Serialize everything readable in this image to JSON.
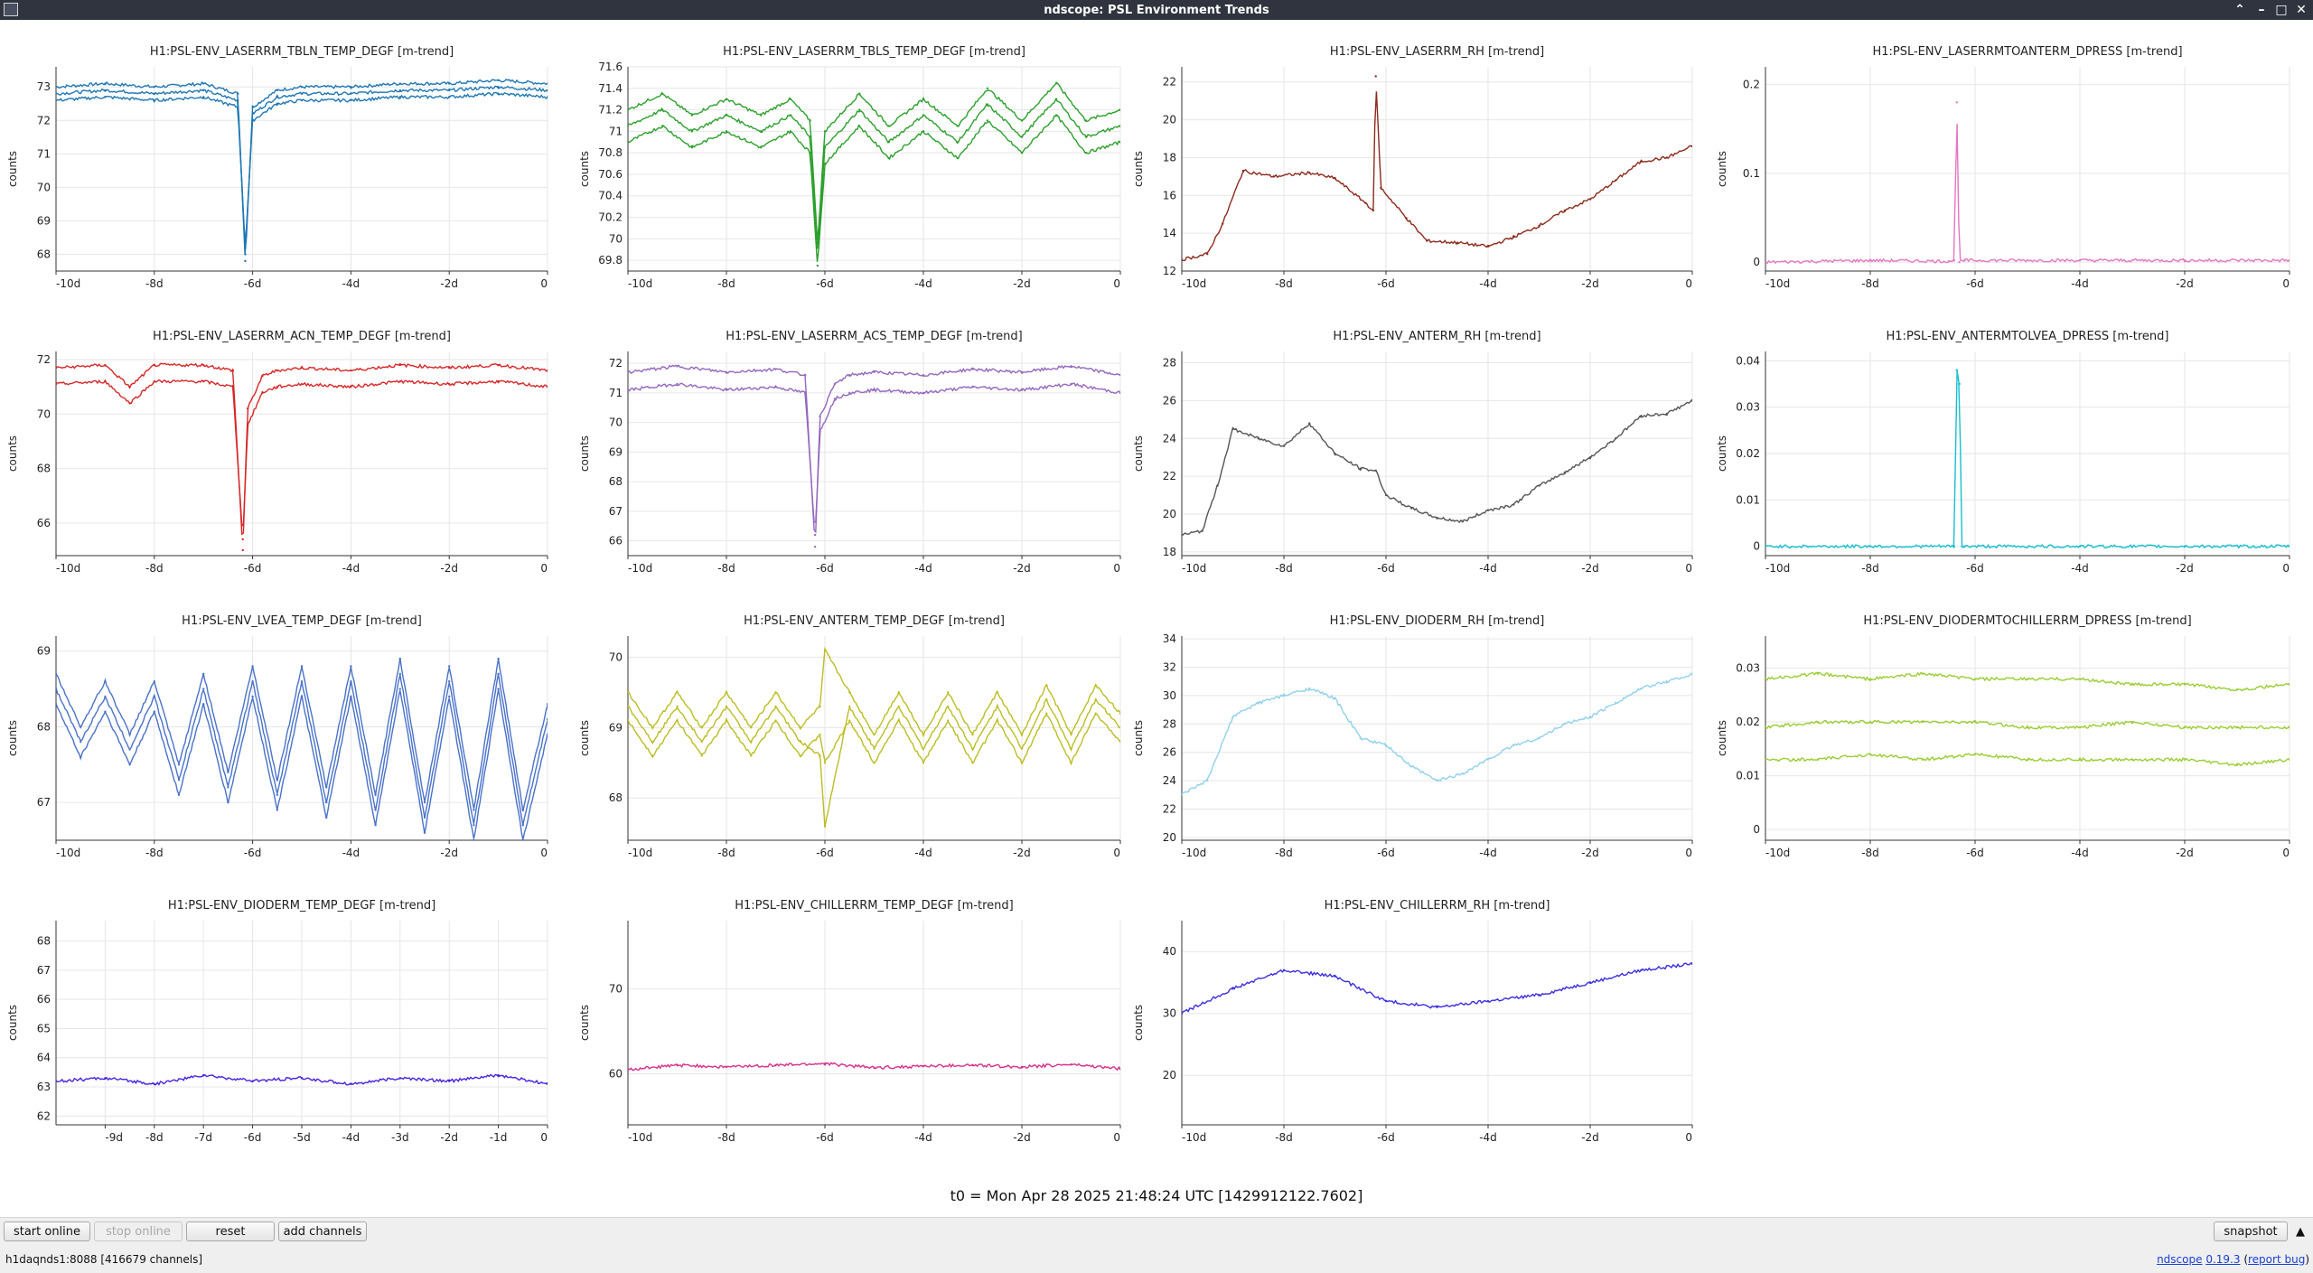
{
  "window": {
    "title": "ndscope: PSL Environment Trends"
  },
  "t0_label": "t0 = Mon Apr 28 2025 21:48:24 UTC [1429912122.7602]",
  "controls": {
    "start_online": "start online",
    "stop_online": "stop online",
    "reset": "reset",
    "add_channels": "add channels",
    "snapshot": "snapshot"
  },
  "status": {
    "server": "h1daqnds1:8088  [416679 channels]",
    "ndscope": "ndscope",
    "version": "0.19.3",
    "report_bug": "report bug"
  },
  "colors": {
    "grid": "#e6e6e6",
    "axis": "#333333"
  },
  "chart_data": [
    {
      "type": "line",
      "title": "H1:PSL-ENV_LASERRM_TBLN_TEMP_DEGF [m-trend]",
      "ylabel": "counts",
      "color": "#1f77b4",
      "ylim": [
        67.5,
        73.6
      ],
      "yticks": [
        "68",
        "69",
        "70",
        "71",
        "72",
        "73"
      ],
      "xticks": [
        "-10d",
        "-8d",
        "-6d",
        "-4d",
        "-2d",
        "0"
      ],
      "x": [
        -10,
        -9,
        -8,
        -7,
        -6.3,
        -6.15,
        -6.0,
        -5.5,
        -5,
        -4,
        -3,
        -2,
        -1,
        0
      ],
      "series": [
        {
          "values": [
            73.0,
            73.1,
            73.0,
            73.1,
            72.8,
            67.8,
            72.4,
            72.9,
            73.0,
            73.0,
            73.1,
            73.1,
            73.2,
            73.1
          ]
        },
        {
          "values": [
            72.8,
            72.9,
            72.8,
            72.9,
            72.6,
            68.0,
            72.2,
            72.7,
            72.8,
            72.8,
            72.9,
            72.9,
            73.0,
            72.9
          ]
        },
        {
          "values": [
            72.6,
            72.7,
            72.6,
            72.7,
            72.4,
            68.2,
            72.0,
            72.5,
            72.6,
            72.6,
            72.7,
            72.7,
            72.8,
            72.7
          ]
        }
      ]
    },
    {
      "type": "line",
      "title": "H1:PSL-ENV_LASERRM_TBLS_TEMP_DEGF [m-trend]",
      "ylabel": "counts",
      "color": "#2ca02c",
      "ylim": [
        69.7,
        71.6
      ],
      "yticks": [
        "69.8",
        "70",
        "70.2",
        "70.4",
        "70.6",
        "70.8",
        "71",
        "71.2",
        "71.4",
        "71.6"
      ],
      "xticks": [
        "-10d",
        "-8d",
        "-6d",
        "-4d",
        "-2d",
        "0"
      ],
      "x": [
        -10,
        -9.3,
        -8.7,
        -8,
        -7.3,
        -6.7,
        -6.3,
        -6.15,
        -6.0,
        -5.3,
        -4.7,
        -4,
        -3.3,
        -2.7,
        -2,
        -1.3,
        -0.7,
        0
      ],
      "series": [
        {
          "values": [
            71.2,
            71.35,
            71.15,
            71.3,
            71.15,
            71.3,
            71.1,
            69.95,
            71.0,
            71.35,
            71.05,
            71.3,
            71.05,
            71.4,
            71.1,
            71.45,
            71.1,
            71.2
          ]
        },
        {
          "values": [
            71.05,
            71.2,
            71.0,
            71.15,
            71.0,
            71.15,
            70.95,
            69.85,
            70.85,
            71.2,
            70.9,
            71.15,
            70.9,
            71.25,
            70.95,
            71.3,
            70.95,
            71.05
          ]
        },
        {
          "values": [
            70.9,
            71.05,
            70.85,
            71.0,
            70.85,
            71.0,
            70.8,
            69.75,
            70.7,
            71.05,
            70.75,
            71.0,
            70.75,
            71.1,
            70.8,
            71.15,
            70.8,
            70.9
          ]
        }
      ]
    },
    {
      "type": "line",
      "title": "H1:PSL-ENV_LASERRM_RH [m-trend]",
      "ylabel": "counts",
      "color": "#8c2a1c",
      "ylim": [
        12,
        22.8
      ],
      "yticks": [
        "12",
        "14",
        "16",
        "18",
        "20",
        "22"
      ],
      "xticks": [
        "-10d",
        "-8d",
        "-6d",
        "-4d",
        "-2d",
        "0"
      ],
      "x": [
        -10,
        -9.5,
        -9.2,
        -8.8,
        -8.2,
        -7.5,
        -7.0,
        -6.4,
        -6.25,
        -6.2,
        -6.1,
        -5.6,
        -5.2,
        -4.6,
        -4.0,
        -3.5,
        -3.0,
        -2.5,
        -2.0,
        -1.5,
        -1.0,
        -0.5,
        0
      ],
      "series": [
        {
          "values": [
            12.6,
            12.9,
            14.5,
            17.3,
            17.0,
            17.2,
            16.9,
            15.6,
            15.2,
            22.3,
            16.4,
            14.8,
            13.6,
            13.5,
            13.3,
            13.8,
            14.4,
            15.2,
            15.8,
            16.8,
            17.8,
            18.0,
            18.6
          ]
        }
      ]
    },
    {
      "type": "line",
      "title": "H1:PSL-ENV_LASERRMTOANTERM_DPRESS [m-trend]",
      "ylabel": "counts",
      "color": "#e377c2",
      "ylim": [
        -0.01,
        0.22
      ],
      "yticks": [
        "0",
        "0.1",
        "0.2"
      ],
      "xticks": [
        "-10d",
        "-8d",
        "-6d",
        "-4d",
        "-2d",
        "0"
      ],
      "x": [
        -10,
        -8,
        -6.5,
        -6.4,
        -6.35,
        -6.3,
        -6.2,
        -4,
        -2,
        0
      ],
      "series": [
        {
          "values": [
            0.0,
            0.002,
            0.001,
            0.002,
            0.18,
            0.0,
            0.002,
            0.002,
            0.002,
            0.002
          ]
        }
      ]
    },
    {
      "type": "line",
      "title": "H1:PSL-ENV_LASERRM_ACN_TEMP_DEGF [m-trend]",
      "ylabel": "counts",
      "color": "#d62728",
      "ylim": [
        64.8,
        72.3
      ],
      "yticks": [
        "66",
        "68",
        "70",
        "72"
      ],
      "xticks": [
        "-10d",
        "-8d",
        "-6d",
        "-4d",
        "-2d",
        "0"
      ],
      "x": [
        -10,
        -9,
        -8.5,
        -8,
        -7,
        -6.4,
        -6.2,
        -6.1,
        -5.8,
        -5.5,
        -5,
        -4,
        -3,
        -2,
        -1,
        0
      ],
      "series": [
        {
          "values": [
            71.7,
            71.8,
            71.0,
            71.8,
            71.8,
            71.6,
            65.0,
            70.2,
            71.4,
            71.6,
            71.7,
            71.6,
            71.8,
            71.7,
            71.8,
            71.6
          ]
        },
        {
          "values": [
            71.1,
            71.2,
            70.4,
            71.2,
            71.2,
            71.0,
            65.4,
            69.6,
            70.8,
            71.0,
            71.1,
            71.0,
            71.2,
            71.1,
            71.2,
            71.0
          ]
        }
      ]
    },
    {
      "type": "line",
      "title": "H1:PSL-ENV_LASERRM_ACS_TEMP_DEGF [m-trend]",
      "ylabel": "counts",
      "color": "#9467bd",
      "ylim": [
        65.5,
        72.4
      ],
      "yticks": [
        "66",
        "67",
        "68",
        "69",
        "70",
        "71",
        "72"
      ],
      "xticks": [
        "-10d",
        "-8d",
        "-6d",
        "-4d",
        "-2d",
        "0"
      ],
      "x": [
        -10,
        -9,
        -8,
        -7,
        -6.4,
        -6.2,
        -6.1,
        -5.8,
        -5.5,
        -5,
        -4,
        -3,
        -2,
        -1,
        0
      ],
      "series": [
        {
          "values": [
            71.7,
            71.9,
            71.7,
            71.8,
            71.6,
            65.8,
            70.2,
            71.3,
            71.6,
            71.7,
            71.6,
            71.8,
            71.7,
            71.9,
            71.6
          ]
        },
        {
          "values": [
            71.1,
            71.3,
            71.1,
            71.2,
            71.0,
            66.2,
            69.7,
            70.8,
            71.0,
            71.1,
            71.0,
            71.2,
            71.1,
            71.3,
            71.0
          ]
        }
      ]
    },
    {
      "type": "line",
      "title": "H1:PSL-ENV_ANTERM_RH [m-trend]",
      "ylabel": "counts",
      "color": "#555555",
      "ylim": [
        17.8,
        28.6
      ],
      "yticks": [
        "18",
        "20",
        "22",
        "24",
        "26",
        "28"
      ],
      "xticks": [
        "-10d",
        "-8d",
        "-6d",
        "-4d",
        "-2d",
        "0"
      ],
      "x": [
        -10,
        -9.6,
        -9.3,
        -9.0,
        -8.5,
        -8.0,
        -7.5,
        -7.0,
        -6.5,
        -6.2,
        -6.0,
        -5.5,
        -5.0,
        -4.5,
        -4.0,
        -3.5,
        -3.0,
        -2.5,
        -2.0,
        -1.5,
        -1.0,
        -0.5,
        0
      ],
      "series": [
        {
          "values": [
            18.9,
            19.1,
            21.5,
            24.5,
            24.0,
            23.6,
            24.8,
            23.2,
            22.4,
            22.3,
            21.0,
            20.3,
            19.8,
            19.6,
            20.2,
            20.5,
            21.5,
            22.2,
            23.0,
            24.0,
            25.2,
            25.3,
            26.0
          ]
        }
      ]
    },
    {
      "type": "line",
      "title": "H1:PSL-ENV_ANTERMTOLVEA_DPRESS [m-trend]",
      "ylabel": "counts",
      "color": "#17becf",
      "ylim": [
        -0.002,
        0.042
      ],
      "yticks": [
        "0",
        "0.01",
        "0.02",
        "0.03",
        "0.04"
      ],
      "xticks": [
        "-10d",
        "-8d",
        "-6d",
        "-4d",
        "-2d",
        "0"
      ],
      "x": [
        -10,
        -8,
        -6.4,
        -6.35,
        -6.3,
        -6.25,
        -6.2,
        -4,
        -2,
        0
      ],
      "series": [
        {
          "values": [
            0.0,
            0.0,
            0.0,
            0.038,
            0.035,
            0.0,
            0.0,
            0.0,
            0.0,
            0.0
          ]
        }
      ]
    },
    {
      "type": "line",
      "title": "H1:PSL-ENV_LVEA_TEMP_DEGF [m-trend]",
      "ylabel": "counts",
      "color": "#4a72c8",
      "ylim": [
        66.5,
        69.2
      ],
      "yticks": [
        "67",
        "68",
        "69"
      ],
      "xticks": [
        "-10d",
        "-8d",
        "-6d",
        "-4d",
        "-2d",
        "0"
      ],
      "x": [
        -10,
        -9.5,
        -9,
        -8.5,
        -8,
        -7.5,
        -7,
        -6.5,
        -6,
        -5.5,
        -5,
        -4.5,
        -4,
        -3.5,
        -3,
        -2.5,
        -2,
        -1.5,
        -1,
        -0.5,
        0
      ],
      "series": [
        {
          "values": [
            68.7,
            68.0,
            68.6,
            67.9,
            68.6,
            67.5,
            68.7,
            67.4,
            68.8,
            67.3,
            68.8,
            67.2,
            68.8,
            67.1,
            68.9,
            67.0,
            68.8,
            66.9,
            68.9,
            66.9,
            68.3
          ]
        },
        {
          "values": [
            68.5,
            67.8,
            68.4,
            67.7,
            68.4,
            67.3,
            68.5,
            67.2,
            68.6,
            67.1,
            68.6,
            67.0,
            68.6,
            66.9,
            68.7,
            66.8,
            68.6,
            66.7,
            68.7,
            66.7,
            68.1
          ]
        },
        {
          "values": [
            68.3,
            67.6,
            68.2,
            67.5,
            68.2,
            67.1,
            68.3,
            67.0,
            68.4,
            66.9,
            68.4,
            66.8,
            68.4,
            66.7,
            68.5,
            66.6,
            68.4,
            66.5,
            68.5,
            66.5,
            67.9
          ]
        }
      ]
    },
    {
      "type": "line",
      "title": "H1:PSL-ENV_ANTERM_TEMP_DEGF [m-trend]",
      "ylabel": "counts",
      "color": "#bcbd22",
      "ylim": [
        67.4,
        70.3
      ],
      "yticks": [
        "68",
        "69",
        "70"
      ],
      "xticks": [
        "-10d",
        "-8d",
        "-6d",
        "-4d",
        "-2d",
        "0"
      ],
      "x": [
        -10,
        -9.5,
        -9,
        -8.5,
        -8,
        -7.5,
        -7,
        -6.5,
        -6.1,
        -6.0,
        -5.5,
        -5,
        -4.5,
        -4,
        -3.5,
        -3,
        -2.5,
        -2,
        -1.5,
        -1,
        -0.5,
        0
      ],
      "series": [
        {
          "values": [
            69.5,
            69.0,
            69.5,
            69.0,
            69.5,
            69.0,
            69.5,
            69.0,
            69.3,
            70.1,
            69.5,
            68.9,
            69.5,
            68.9,
            69.5,
            68.9,
            69.5,
            68.9,
            69.6,
            68.9,
            69.6,
            69.2
          ]
        },
        {
          "values": [
            69.3,
            68.8,
            69.3,
            68.8,
            69.3,
            68.8,
            69.3,
            68.8,
            68.6,
            67.6,
            69.3,
            68.7,
            69.3,
            68.7,
            69.3,
            68.7,
            69.3,
            68.7,
            69.4,
            68.7,
            69.4,
            69.0
          ]
        },
        {
          "values": [
            69.1,
            68.6,
            69.1,
            68.6,
            69.1,
            68.6,
            69.1,
            68.6,
            68.9,
            68.5,
            69.1,
            68.5,
            69.1,
            68.5,
            69.1,
            68.5,
            69.1,
            68.5,
            69.2,
            68.5,
            69.2,
            68.8
          ]
        }
      ]
    },
    {
      "type": "line",
      "title": "H1:PSL-ENV_DIODERM_RH [m-trend]",
      "ylabel": "counts",
      "color": "#8fd1ea",
      "ylim": [
        19.8,
        34.2
      ],
      "yticks": [
        "20",
        "22",
        "24",
        "26",
        "28",
        "30",
        "32",
        "34"
      ],
      "xticks": [
        "-10d",
        "-8d",
        "-6d",
        "-4d",
        "-2d",
        "0"
      ],
      "x": [
        -10,
        -9.5,
        -9,
        -8.5,
        -8,
        -7.5,
        -7,
        -6.5,
        -6,
        -5.5,
        -5,
        -4.5,
        -4,
        -3.5,
        -3,
        -2.5,
        -2,
        -1.5,
        -1,
        -0.5,
        0
      ],
      "series": [
        {
          "values": [
            23.0,
            24.0,
            28.5,
            29.5,
            30.0,
            30.5,
            29.8,
            27.0,
            26.5,
            25.0,
            24.0,
            24.5,
            25.5,
            26.5,
            27.0,
            28.0,
            28.5,
            29.5,
            30.5,
            31.0,
            31.5
          ]
        }
      ]
    },
    {
      "type": "line",
      "title": "H1:PSL-ENV_DIODERMTOCHILLERRM_DPRESS [m-trend]",
      "ylabel": "counts",
      "color": "#9acd32",
      "ylim": [
        -0.002,
        0.036
      ],
      "yticks": [
        "0",
        "0.01",
        "0.02",
        "0.03"
      ],
      "xticks": [
        "-10d",
        "-8d",
        "-6d",
        "-4d",
        "-2d",
        "0"
      ],
      "x": [
        -10,
        -9,
        -8,
        -7,
        -6,
        -5,
        -4,
        -3,
        -2,
        -1,
        0
      ],
      "series": [
        {
          "values": [
            0.028,
            0.029,
            0.028,
            0.029,
            0.028,
            0.028,
            0.028,
            0.027,
            0.027,
            0.026,
            0.027
          ]
        },
        {
          "values": [
            0.019,
            0.02,
            0.02,
            0.02,
            0.02,
            0.019,
            0.019,
            0.02,
            0.019,
            0.019,
            0.019
          ]
        },
        {
          "values": [
            0.013,
            0.013,
            0.014,
            0.013,
            0.014,
            0.013,
            0.013,
            0.013,
            0.013,
            0.012,
            0.013
          ]
        }
      ]
    },
    {
      "type": "line",
      "title": "H1:PSL-ENV_DIODERM_TEMP_DEGF [m-trend]",
      "ylabel": "counts",
      "color": "#4a22e0",
      "ylim": [
        61.7,
        68.7
      ],
      "yticks": [
        "62",
        "63",
        "64",
        "65",
        "66",
        "67",
        "68"
      ],
      "xticks": [
        "-9d",
        "-8d",
        "-7d",
        "-6d",
        "-5d",
        "-4d",
        "-3d",
        "-2d",
        "-1d",
        "0"
      ],
      "x": [
        -10,
        -9,
        -8,
        -7,
        -6,
        -5,
        -4,
        -3,
        -2,
        -1,
        0
      ],
      "series": [
        {
          "values": [
            63.2,
            63.3,
            63.1,
            63.4,
            63.2,
            63.3,
            63.1,
            63.3,
            63.2,
            63.4,
            63.1
          ]
        }
      ]
    },
    {
      "type": "line",
      "title": "H1:PSL-ENV_CHILLERRM_TEMP_DEGF [m-trend]",
      "ylabel": "counts",
      "color": "#d6308c",
      "ylim": [
        54,
        78
      ],
      "yticks": [
        "60",
        "70"
      ],
      "xticks": [
        "-10d",
        "-8d",
        "-6d",
        "-4d",
        "-2d",
        "0"
      ],
      "x": [
        -10,
        -9,
        -8,
        -7,
        -6,
        -5,
        -4,
        -3,
        -2,
        -1,
        0
      ],
      "series": [
        {
          "values": [
            60.5,
            61.0,
            60.8,
            61.0,
            61.2,
            60.7,
            60.9,
            61.0,
            60.8,
            61.1,
            60.6
          ]
        }
      ]
    },
    {
      "type": "line",
      "title": "H1:PSL-ENV_CHILLERRM_RH [m-trend]",
      "ylabel": "counts",
      "color": "#3b2ee0",
      "ylim": [
        12,
        45
      ],
      "yticks": [
        "20",
        "30",
        "40"
      ],
      "xticks": [
        "-10d",
        "-8d",
        "-6d",
        "-4d",
        "-2d",
        "0"
      ],
      "x": [
        -10,
        -9,
        -8,
        -7,
        -6,
        -5,
        -4,
        -3,
        -2,
        -1,
        0
      ],
      "series": [
        {
          "values": [
            30.0,
            34.0,
            37.0,
            36.0,
            32.0,
            31.0,
            32.0,
            33.0,
            35.0,
            37.0,
            38.0
          ]
        }
      ]
    }
  ]
}
